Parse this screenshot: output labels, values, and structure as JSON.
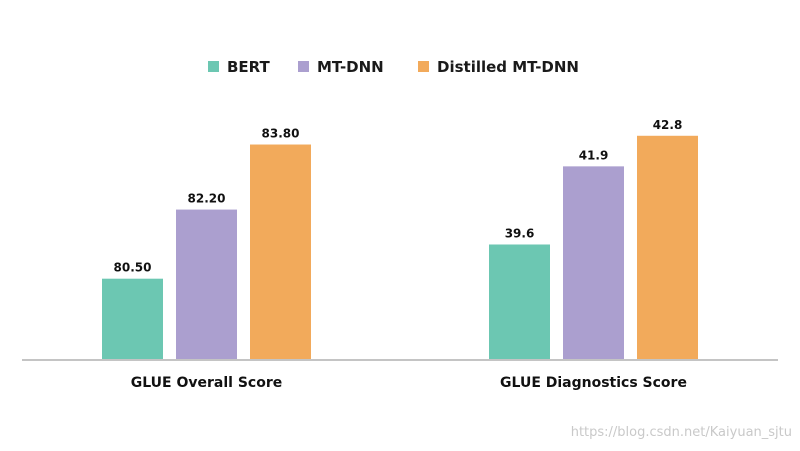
{
  "chart_data": {
    "type": "bar",
    "title": "",
    "xlabel": "",
    "ylabel": "",
    "legend_position": "top",
    "grid": false,
    "groups": [
      {
        "category": "GLUE Overall Score",
        "ylim": [
          78.5,
          84.6
        ],
        "values": [
          80.5,
          82.2,
          83.8
        ],
        "labels": [
          "80.50",
          "82.20",
          "83.80"
        ]
      },
      {
        "category": "GLUE Diagnostics Score",
        "ylim": [
          36.2,
          43.5
        ],
        "values": [
          39.6,
          41.9,
          42.8
        ],
        "labels": [
          "39.6",
          "41.9",
          "42.8"
        ]
      }
    ],
    "series": [
      {
        "name": "BERT",
        "color": "#6cc7b2"
      },
      {
        "name": "MT-DNN",
        "color": "#ab9fcf"
      },
      {
        "name": "Distilled MT-DNN",
        "color": "#f2aa5b"
      }
    ]
  },
  "watermark": "https://blog.csdn.net/Kaiyuan_sjtu",
  "colors": {
    "axis": "#c4c4c4",
    "text": "#111111"
  }
}
